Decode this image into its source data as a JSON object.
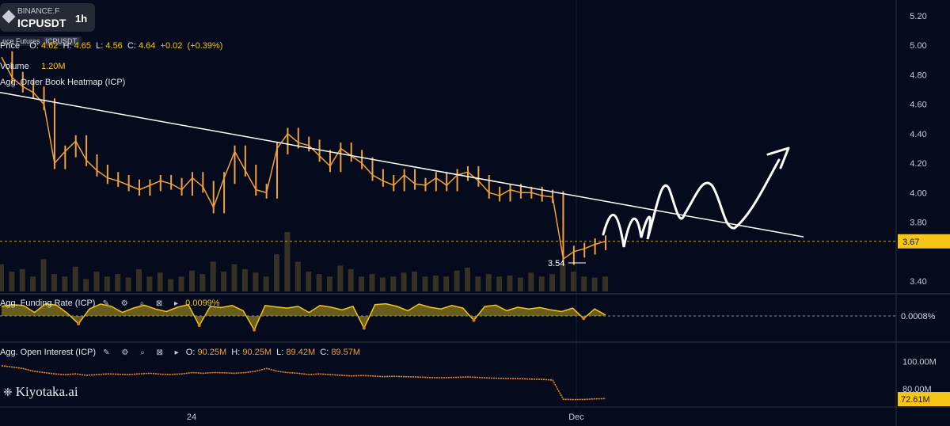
{
  "ticker": {
    "exchange": "BINANCE.F",
    "symbol": "ICPUSDT",
    "timeframe": "1h",
    "subtitle": "nce Futures",
    "subtitle_exchange": "ICPUSDT"
  },
  "price_legend": {
    "label": "Price",
    "open_label": "O:",
    "open": "4.62",
    "high_label": "H:",
    "high": "4.65",
    "low_label": "L:",
    "low": "4.56",
    "close_label": "C:",
    "close": "4.64",
    "change": "+0.02",
    "change_pct": "(+0.39%)"
  },
  "volume_legend": {
    "label": "Volume",
    "value": "1.20M"
  },
  "heatmap_legend": {
    "label": "Agg. Order Book Heatmap (ICP)"
  },
  "funding_legend": {
    "label": "Agg. Funding Rate (ICP)",
    "value": "0.0099%"
  },
  "oi_legend": {
    "label": "Agg. Open Interest (ICP)",
    "open_label": "O:",
    "open": "90.25M",
    "high_label": "H:",
    "high": "90.25M",
    "low_label": "L:",
    "low": "89.42M",
    "close_label": "C:",
    "close": "89.57M"
  },
  "brand": {
    "name": "Kiyotaka.ai"
  },
  "colors": {
    "background": "#050a1c",
    "candle": "#f0a23a",
    "trendline": "#ffffff",
    "price_tag": "#f5c518",
    "funding_fill": "#8a7a1a",
    "funding_line": "#f5c518",
    "oi_line": "#f08a1e"
  },
  "chart_data": [
    {
      "type": "line",
      "panel": "price",
      "title": "ICPUSDT 1h",
      "x_ticks": [
        "24",
        "Dec"
      ],
      "y_ticks": [
        "5.20",
        "5.00",
        "4.80",
        "4.60",
        "4.40",
        "4.20",
        "4.00",
        "3.80",
        "3.40"
      ],
      "ylim": [
        3.3,
        5.25
      ],
      "current_price": "3.67",
      "low_marker": "3.54",
      "series": [
        {
          "values": [
            4.92,
            4.78,
            4.72,
            4.68,
            4.6,
            4.2,
            4.28,
            4.35,
            4.22,
            4.15,
            4.1,
            4.08,
            4.05,
            4.02,
            4.05,
            4.08,
            4.06,
            4.02,
            4.1,
            4.04,
            3.9,
            4.1,
            4.28,
            4.15,
            4.02,
            4.0,
            4.3,
            4.4,
            4.34,
            4.32,
            4.25,
            4.18,
            4.3,
            4.25,
            4.2,
            4.12,
            4.08,
            4.05,
            4.12,
            4.06,
            4.05,
            4.1,
            4.05,
            4.12,
            4.14,
            4.08,
            4.0,
            3.98,
            4.02,
            4.0,
            4.0,
            3.98,
            3.97,
            3.55,
            3.6,
            3.62,
            3.65,
            3.67
          ]
        }
      ],
      "trendline": {
        "from_value": 4.68,
        "to_value": 3.7
      },
      "volume": [
        0.55,
        0.4,
        0.45,
        0.3,
        0.65,
        0.35,
        0.3,
        0.5,
        0.25,
        0.4,
        0.3,
        0.35,
        0.28,
        0.45,
        0.3,
        0.38,
        0.25,
        0.3,
        0.42,
        0.35,
        0.6,
        0.4,
        0.55,
        0.45,
        0.38,
        0.3,
        0.75,
        1.2,
        0.6,
        0.4,
        0.35,
        0.3,
        0.52,
        0.45,
        0.3,
        0.35,
        0.28,
        0.3,
        0.38,
        0.4,
        0.3,
        0.32,
        0.3,
        0.42,
        0.48,
        0.3,
        0.35,
        0.3,
        0.32,
        0.28,
        0.38,
        0.3,
        0.35,
        0.55,
        0.4,
        0.3,
        0.28,
        0.3
      ]
    },
    {
      "type": "area",
      "panel": "funding",
      "title": "Agg. Funding Rate (ICP)",
      "y_ticks": [
        "0.0008%"
      ],
      "values": [
        0.55,
        0.65,
        0.6,
        0.2,
        0.7,
        0.62,
        0.15,
        -0.45,
        0.4,
        0.68,
        0.55,
        0.2,
        0.45,
        0.62,
        0.4,
        0.25,
        0.5,
        0.65,
        -0.55,
        0.55,
        0.48,
        0.6,
        0.3,
        -0.8,
        0.6,
        0.52,
        0.45,
        0.55,
        0.2,
        0.6,
        0.5,
        0.35,
        0.55,
        -0.7,
        0.65,
        0.7,
        0.55,
        0.3,
        0.68,
        0.5,
        0.4,
        0.6,
        0.45,
        -0.25,
        0.55,
        0.62,
        0.3,
        0.5,
        0.4,
        0.48,
        0.35,
        0.25,
        0.45,
        -0.15,
        0.4,
        0.05
      ]
    },
    {
      "type": "line",
      "panel": "open_interest",
      "title": "Agg. Open Interest (ICP)",
      "y_ticks": [
        "100.00M",
        "80.00M"
      ],
      "ylim": [
        68,
        105
      ],
      "current_value": "72.61M",
      "values": [
        97,
        96,
        95,
        93,
        92,
        91,
        90.5,
        91,
        90,
        90.5,
        91,
        90.8,
        90.5,
        91,
        91.5,
        90.8,
        90.6,
        91,
        92,
        91.5,
        92,
        91.8,
        91.5,
        92,
        93,
        95,
        93,
        92,
        91.5,
        90.5,
        91,
        90.5,
        90,
        89.5,
        89.8,
        89.5,
        89,
        89.3,
        89,
        88.8,
        88.5,
        88.2,
        88.3,
        88.5,
        88.8,
        88.4,
        88,
        87.8,
        87.6,
        87.5,
        87.2,
        87,
        86.5,
        72.5,
        72.3,
        72.4,
        72.8,
        73
      ]
    }
  ]
}
